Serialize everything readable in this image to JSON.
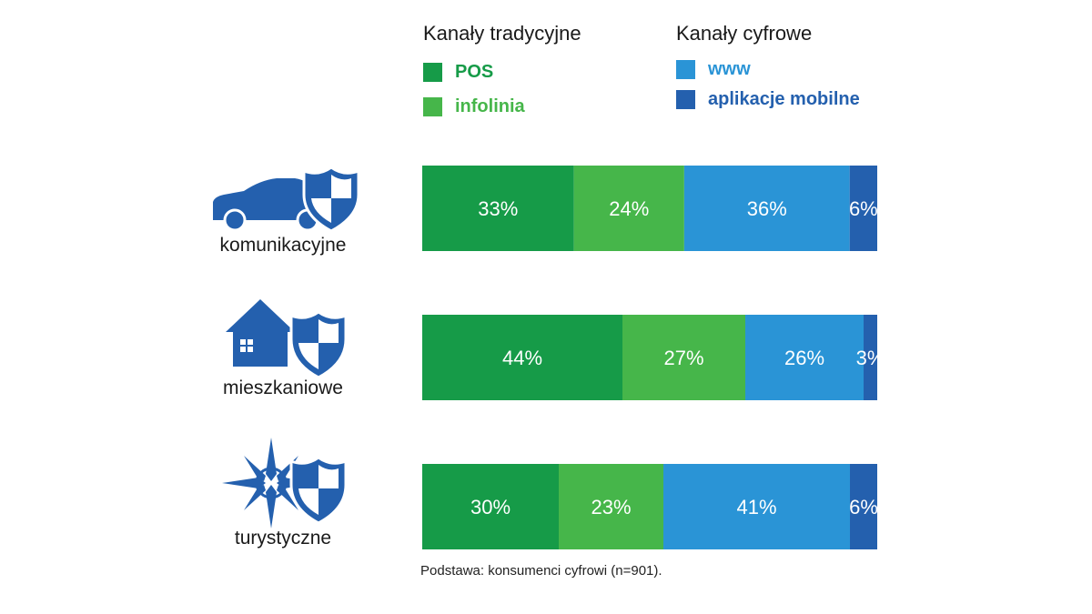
{
  "legend": {
    "traditional": {
      "title": "Kanały tradycyjne",
      "items": [
        {
          "label": "POS",
          "color": "#169b48"
        },
        {
          "label": "infolinia",
          "color": "#46b64a"
        }
      ]
    },
    "digital": {
      "title": "Kanały cyfrowe",
      "items": [
        {
          "label": "www",
          "color": "#2a94d6"
        },
        {
          "label": "aplikacje mobilne",
          "color": "#2460ae"
        }
      ]
    }
  },
  "rows": [
    {
      "label": "komunikacyjne",
      "icon": "car-shield-icon"
    },
    {
      "label": "mieszkaniowe",
      "icon": "house-shield-icon"
    },
    {
      "label": "turystyczne",
      "icon": "compass-shield-icon"
    }
  ],
  "chart_data": {
    "type": "bar",
    "orientation": "horizontal-stacked",
    "categories": [
      "komunikacyjne",
      "mieszkaniowe",
      "turystyczne"
    ],
    "series": [
      {
        "name": "POS",
        "color": "#169b48",
        "values": [
          33,
          44,
          30
        ],
        "labels": [
          "33%",
          "44%",
          "30%"
        ]
      },
      {
        "name": "infolinia",
        "color": "#46b64a",
        "values": [
          24,
          27,
          23
        ],
        "labels": [
          "24%",
          "27%",
          "23%"
        ]
      },
      {
        "name": "www",
        "color": "#2a94d6",
        "values": [
          36,
          26,
          41
        ],
        "labels": [
          "36%",
          "26%",
          "41%"
        ]
      },
      {
        "name": "aplikacje mobilne",
        "color": "#2460ae",
        "values": [
          6,
          3,
          6
        ],
        "labels": [
          "6%",
          "3%",
          "6%"
        ]
      }
    ],
    "unit": "%",
    "grid": false,
    "legend_position": "top"
  },
  "footnote": "Podstawa: konsumenci cyfrowi (n=901)."
}
